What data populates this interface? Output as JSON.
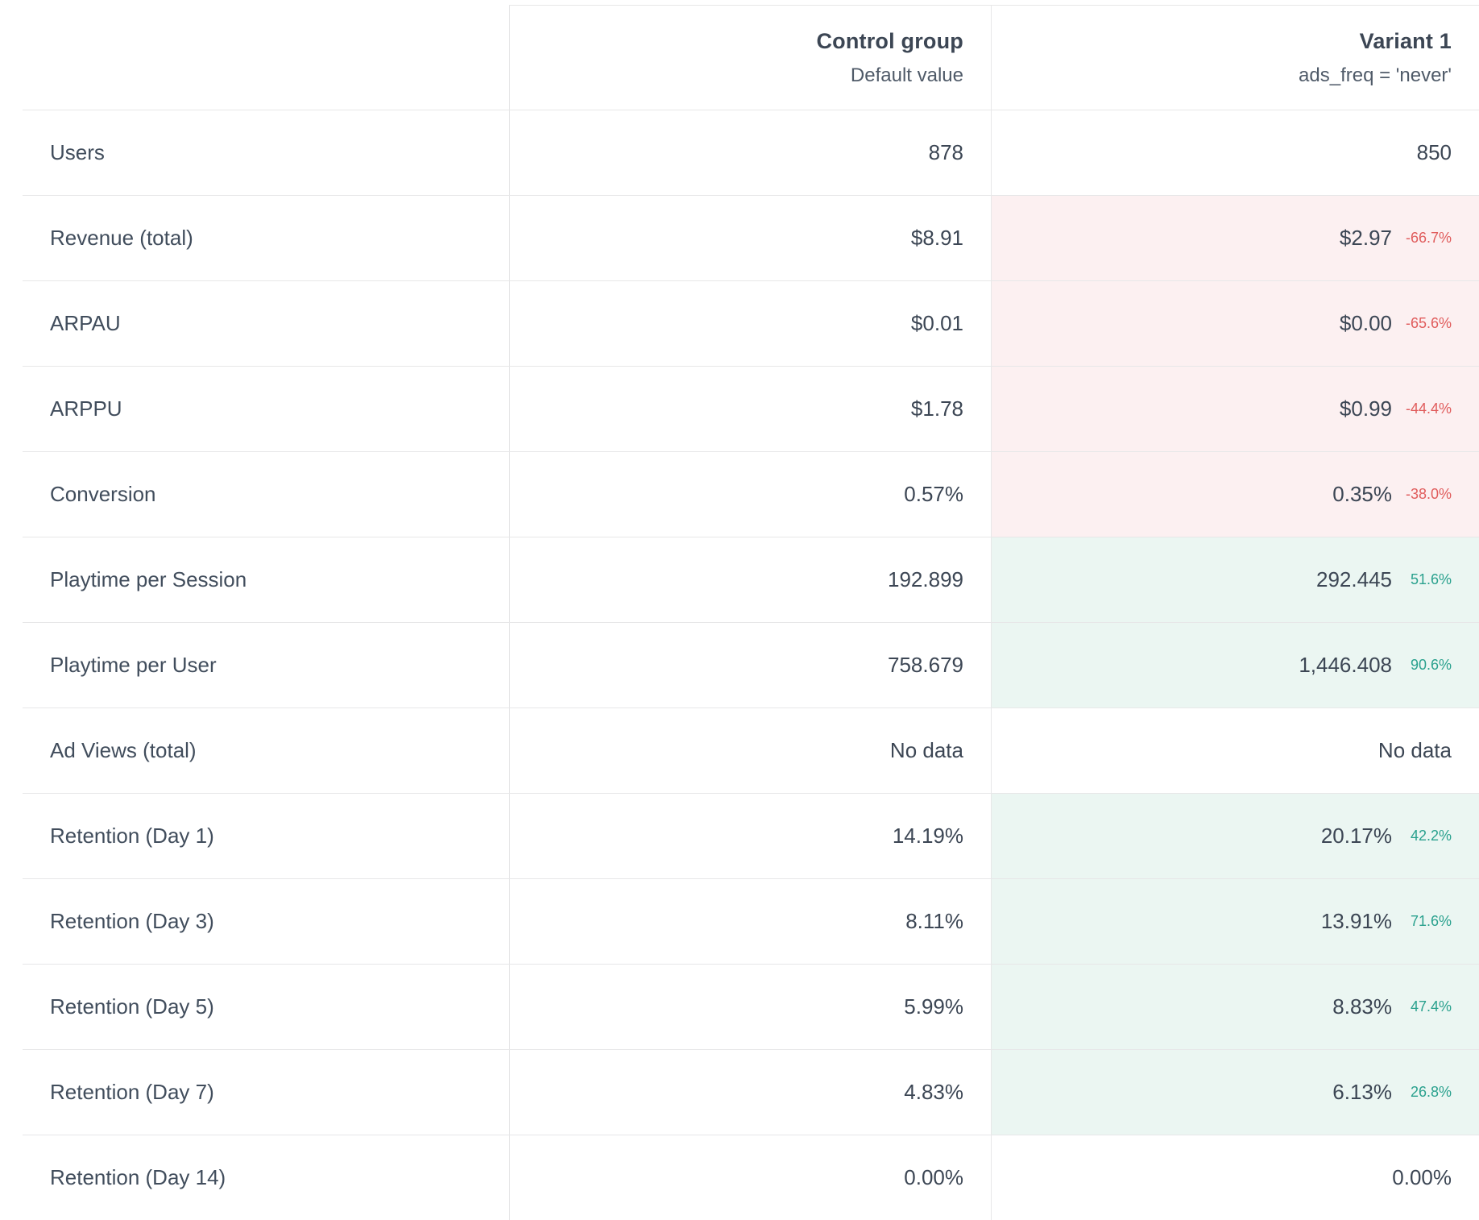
{
  "colors": {
    "negative_bg": "#fcf0f1",
    "positive_bg": "#ebf6f2",
    "negative_text": "#e05c5c",
    "positive_text": "#2aa18e"
  },
  "table": {
    "header": {
      "control": {
        "title": "Control group",
        "subtitle": "Default value"
      },
      "variant": {
        "title": "Variant 1",
        "subtitle": "ads_freq = 'never'"
      }
    },
    "rows": [
      {
        "label": "Users",
        "control": "878",
        "variant": "850",
        "delta": "",
        "trend": "neutral"
      },
      {
        "label": "Revenue (total)",
        "control": "$8.91",
        "variant": "$2.97",
        "delta": "-66.7%",
        "trend": "negative"
      },
      {
        "label": "ARPAU",
        "control": "$0.01",
        "variant": "$0.00",
        "delta": "-65.6%",
        "trend": "negative"
      },
      {
        "label": "ARPPU",
        "control": "$1.78",
        "variant": "$0.99",
        "delta": "-44.4%",
        "trend": "negative"
      },
      {
        "label": "Conversion",
        "control": "0.57%",
        "variant": "0.35%",
        "delta": "-38.0%",
        "trend": "negative"
      },
      {
        "label": "Playtime per Session",
        "control": "192.899",
        "variant": "292.445",
        "delta": "51.6%",
        "trend": "positive"
      },
      {
        "label": "Playtime per User",
        "control": "758.679",
        "variant": "1,446.408",
        "delta": "90.6%",
        "trend": "positive"
      },
      {
        "label": "Ad Views (total)",
        "control": "No data",
        "variant": "No data",
        "delta": "",
        "trend": "neutral"
      },
      {
        "label": "Retention (Day 1)",
        "control": "14.19%",
        "variant": "20.17%",
        "delta": "42.2%",
        "trend": "positive"
      },
      {
        "label": "Retention (Day 3)",
        "control": "8.11%",
        "variant": "13.91%",
        "delta": "71.6%",
        "trend": "positive"
      },
      {
        "label": "Retention (Day 5)",
        "control": "5.99%",
        "variant": "8.83%",
        "delta": "47.4%",
        "trend": "positive"
      },
      {
        "label": "Retention (Day 7)",
        "control": "4.83%",
        "variant": "6.13%",
        "delta": "26.8%",
        "trend": "positive"
      },
      {
        "label": "Retention (Day 14)",
        "control": "0.00%",
        "variant": "0.00%",
        "delta": "",
        "trend": "neutral"
      }
    ]
  }
}
